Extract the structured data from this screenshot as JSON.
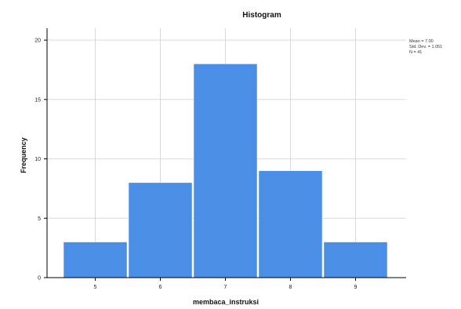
{
  "chart_data": {
    "type": "bar",
    "title": "Histogram",
    "xlabel": "membaca_instruksi",
    "ylabel": "Frequency",
    "categories": [
      "5",
      "6",
      "7",
      "8",
      "9"
    ],
    "values": [
      3,
      8,
      18,
      9,
      3
    ],
    "yticks": [
      "0",
      "5",
      "10",
      "15",
      "20"
    ],
    "ylim": [
      0,
      21
    ],
    "grid": true,
    "legend_position": "top-right",
    "bar_color": "#4a8ee6",
    "stats": {
      "mean": "Mean = 7.00",
      "std": "Std. Dev. = 1.051",
      "n": "N = 41"
    }
  }
}
